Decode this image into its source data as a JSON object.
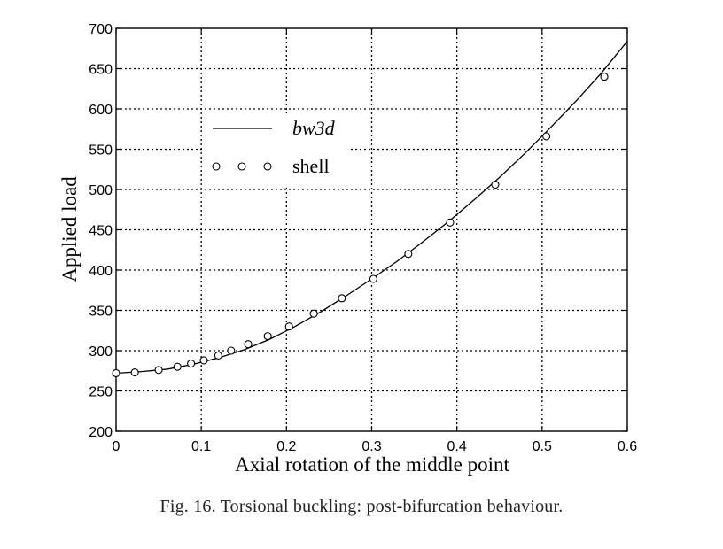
{
  "chart_data": {
    "type": "line",
    "title": "",
    "xlabel": "Axial rotation of the middle point",
    "ylabel": "Applied load",
    "xlim": [
      0,
      0.6
    ],
    "ylim": [
      200,
      700
    ],
    "xticks": [
      0,
      0.1,
      0.2,
      0.3,
      0.4,
      0.5,
      0.6
    ],
    "xtick_labels": [
      "0",
      "0.1",
      "0.2",
      "0.3",
      "0.4",
      "0.5",
      "0.6"
    ],
    "yticks": [
      200,
      250,
      300,
      350,
      400,
      450,
      500,
      550,
      600,
      650,
      700
    ],
    "ytick_labels": [
      "200",
      "250",
      "300",
      "350",
      "400",
      "450",
      "500",
      "550",
      "600",
      "650",
      "700"
    ],
    "grid": true,
    "legend_position": "top-left",
    "series": [
      {
        "name": "bw3d",
        "style": "line",
        "x": [
          0,
          0.03,
          0.06,
          0.09,
          0.12,
          0.15,
          0.18,
          0.21,
          0.24,
          0.27,
          0.3,
          0.33,
          0.36,
          0.39,
          0.42,
          0.45,
          0.48,
          0.51,
          0.54,
          0.57,
          0.6
        ],
        "y": [
          272,
          274,
          277,
          283,
          291,
          301,
          314,
          330,
          348,
          368,
          389,
          411,
          435,
          460,
          487,
          515,
          545,
          577,
          610,
          645,
          684
        ]
      },
      {
        "name": "shell",
        "style": "circle-markers",
        "x": [
          0,
          0.022,
          0.05,
          0.072,
          0.088,
          0.103,
          0.12,
          0.135,
          0.155,
          0.178,
          0.203,
          0.232,
          0.265,
          0.302,
          0.343,
          0.392,
          0.445,
          0.505,
          0.573
        ],
        "y": [
          272,
          273,
          276,
          280,
          284,
          288,
          294,
          300,
          308,
          318,
          330,
          346,
          365,
          389,
          420,
          459,
          506,
          566,
          640
        ]
      }
    ]
  },
  "caption": "Fig. 16. Torsional buckling: post-bifurcation behaviour."
}
